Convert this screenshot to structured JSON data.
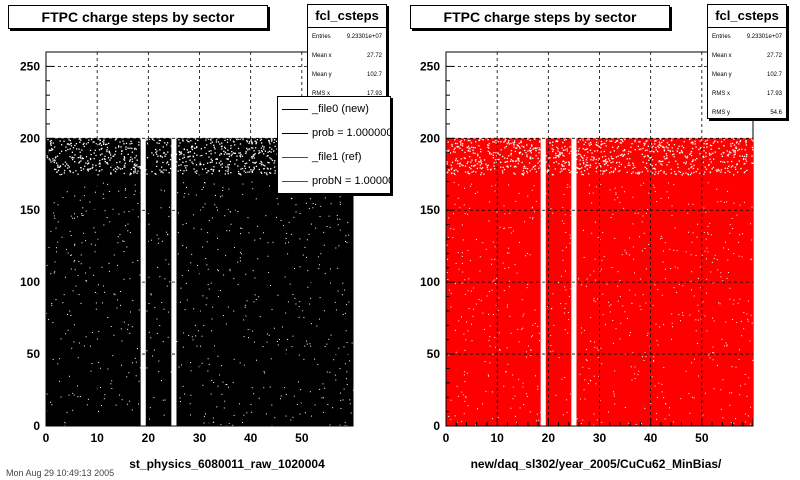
{
  "footer_text": "Mon Aug 29 10:49:13 2005",
  "panels": [
    {
      "title": "FTPC charge steps by sector",
      "stats": {
        "name": "fcl_csteps",
        "rows": [
          {
            "label": "Entries",
            "value": "9.23301e+07"
          },
          {
            "label": "Mean x",
            "value": "27.72"
          },
          {
            "label": "Mean y",
            "value": "102.7"
          },
          {
            "label": "RMS x",
            "value": "17.93"
          }
        ]
      },
      "legend": [
        {
          "label": "_file0 (new)",
          "color": "#000000"
        },
        {
          "label": "prob = 1.000000",
          "color": "#000000"
        },
        {
          "label": "_file1 (ref)",
          "color": "#ff0000"
        },
        {
          "label": "probN = 1.000000",
          "color": "#ff0000"
        }
      ],
      "xlabel": "st_physics_6080011_raw_1020004",
      "color": "#000000"
    },
    {
      "title": "FTPC charge steps by sector",
      "stats": {
        "name": "fcl_csteps",
        "rows": [
          {
            "label": "Entries",
            "value": "9.23301e+07"
          },
          {
            "label": "Mean x",
            "value": "27.72"
          },
          {
            "label": "Mean y",
            "value": "102.7"
          },
          {
            "label": "RMS x",
            "value": "17.93"
          },
          {
            "label": "RMS y",
            "value": "54.6"
          }
        ]
      },
      "legend": [],
      "xlabel": "new/daq_sl302/year_2005/CuCu62_MinBias/",
      "color": "#ff0000"
    }
  ],
  "chart_data": [
    {
      "type": "scatter",
      "title": "FTPC charge steps by sector",
      "xlabel": "st_physics_6080011_raw_1020004",
      "ylabel": "",
      "xlim": [
        0,
        60
      ],
      "ylim": [
        0,
        260
      ],
      "xticks": [
        0,
        10,
        20,
        30,
        40,
        50
      ],
      "yticks": [
        0,
        50,
        100,
        150,
        200,
        250
      ],
      "grid": true,
      "series": [
        {
          "name": "_file0 (new)",
          "color": "#000000"
        },
        {
          "name": "_file1 (ref)",
          "color": "#ff0000"
        }
      ],
      "filled_regions": [
        {
          "x": [
            0,
            18.5
          ],
          "y": [
            0,
            200
          ]
        },
        {
          "x": [
            19.5,
            24.5
          ],
          "y": [
            0,
            200
          ]
        },
        {
          "x": [
            25.5,
            60
          ],
          "y": [
            0,
            200
          ]
        }
      ],
      "empty_columns_x": [
        19,
        25
      ],
      "y_max_value": 200
    },
    {
      "type": "scatter",
      "title": "FTPC charge steps by sector",
      "xlabel": "new/daq_sl302/year_2005/CuCu62_MinBias/",
      "ylabel": "",
      "xlim": [
        0,
        60
      ],
      "ylim": [
        0,
        260
      ],
      "xticks": [
        0,
        10,
        20,
        30,
        40,
        50
      ],
      "yticks": [
        0,
        50,
        100,
        150,
        200,
        250
      ],
      "grid": true,
      "series": [
        {
          "name": "_file1 (ref)",
          "color": "#ff0000"
        }
      ],
      "filled_regions": [
        {
          "x": [
            0,
            18.5
          ],
          "y": [
            0,
            200
          ]
        },
        {
          "x": [
            19.5,
            24.5
          ],
          "y": [
            0,
            200
          ]
        },
        {
          "x": [
            25.5,
            60
          ],
          "y": [
            0,
            200
          ]
        }
      ],
      "empty_columns_x": [
        19,
        25
      ],
      "y_max_value": 200
    }
  ]
}
